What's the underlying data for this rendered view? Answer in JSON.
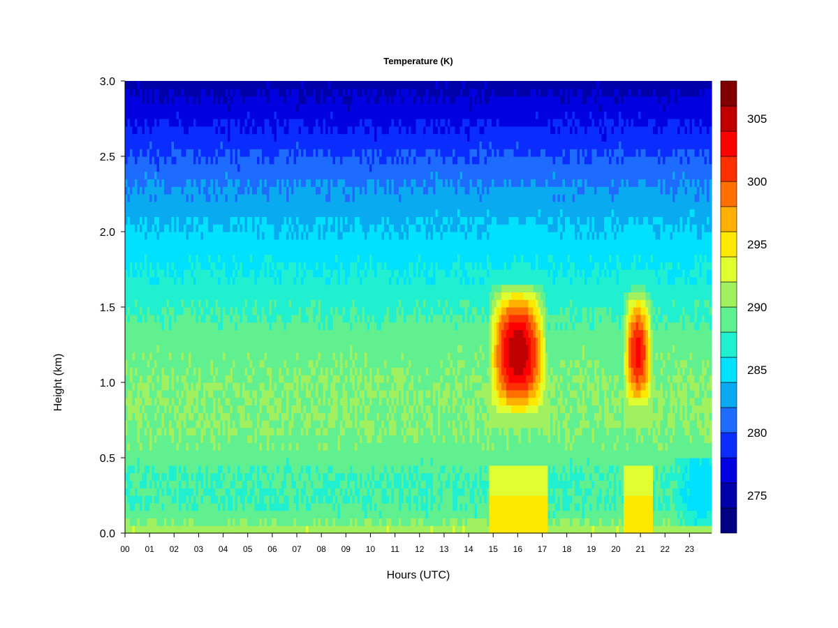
{
  "chart_data": {
    "type": "heatmap",
    "title": "Temperature (K)",
    "xlabel": "Hours (UTC)",
    "ylabel": "Height (km)",
    "xlim": [
      0,
      23.9
    ],
    "ylim": [
      0,
      3.0
    ],
    "x_ticks": [
      "00",
      "01",
      "02",
      "03",
      "04",
      "05",
      "06",
      "07",
      "08",
      "09",
      "10",
      "11",
      "12",
      "13",
      "14",
      "15",
      "16",
      "17",
      "18",
      "19",
      "20",
      "21",
      "22",
      "23"
    ],
    "y_ticks": [
      "0.0",
      "0.5",
      "1.0",
      "1.5",
      "2.0",
      "2.5",
      "3.0"
    ],
    "colorbar": {
      "label": "",
      "range": [
        272,
        308
      ],
      "step": 2,
      "tick_labels": [
        "275",
        "280",
        "285",
        "290",
        "295",
        "300",
        "305"
      ],
      "colors": [
        "#000080",
        "#0000a8",
        "#0000e0",
        "#0a2cff",
        "#1e6cff",
        "#0aaaf0",
        "#00e0ff",
        "#20f0d0",
        "#60f090",
        "#a0f060",
        "#e0ff30",
        "#ffe800",
        "#ffb000",
        "#ff7000",
        "#ff3000",
        "#ff0000",
        "#c00000",
        "#800000"
      ]
    },
    "grid": false,
    "heights_km": [
      0.0,
      0.1,
      0.2,
      0.4,
      0.5,
      0.7,
      1.0,
      1.3,
      1.6,
      1.9,
      2.3,
      2.7,
      3.0
    ],
    "background_profile_K": [
      292,
      289,
      288,
      288,
      289,
      290,
      290,
      289,
      287,
      285,
      282,
      278,
      275
    ],
    "warm_events": [
      {
        "start_hour": 14.8,
        "end_hour": 17.2,
        "peak_K": 305,
        "peak_height_km": 1.2
      },
      {
        "start_hour": 20.3,
        "end_hour": 21.5,
        "peak_K": 302,
        "peak_height_km": 1.2
      }
    ]
  }
}
